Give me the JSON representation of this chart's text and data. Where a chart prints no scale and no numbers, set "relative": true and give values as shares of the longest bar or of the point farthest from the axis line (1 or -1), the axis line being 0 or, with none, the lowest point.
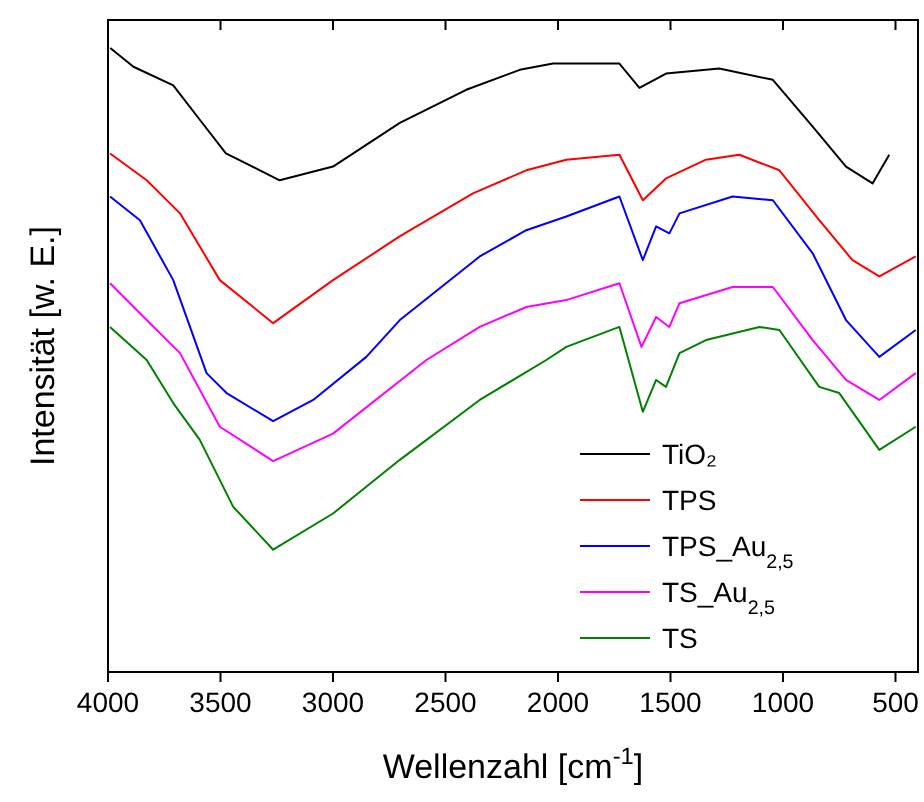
{
  "chart_data": {
    "type": "line",
    "relative": true,
    "xlabel": "Wellenzahl [cm$^{-1}$]",
    "ylabel": "Intensität [w. E.]",
    "xlim": [
      4000,
      400
    ],
    "xticks": [
      4000,
      3500,
      3000,
      2500,
      2000,
      1500,
      1000,
      500
    ],
    "tick_labels": "x",
    "legend": "bottom right",
    "grid": false,
    "series": [
      {
        "name": "TiO₂",
        "color": "#000000",
        "x": [
          3990,
          3887,
          3710,
          3592,
          3476,
          3237,
          3000,
          2703,
          2408,
          2170,
          2022,
          1727,
          1638,
          1520,
          1283,
          1045,
          868,
          720,
          602,
          528
        ],
        "values": [
          1.0,
          0.97,
          0.94,
          0.885,
          0.831,
          0.788,
          0.81,
          0.88,
          0.933,
          0.965,
          0.975,
          0.975,
          0.936,
          0.959,
          0.967,
          0.949,
          0.874,
          0.81,
          0.783,
          0.829
        ]
      },
      {
        "name": "TPS",
        "color": "#ff0000",
        "x": [
          3991,
          3828,
          3680,
          3503,
          3266,
          3000,
          2704,
          2378,
          2141,
          1963,
          1727,
          1623,
          1520,
          1342,
          1194,
          1016,
          839,
          691,
          572,
          410
        ],
        "values": [
          0.831,
          0.788,
          0.735,
          0.628,
          0.559,
          0.628,
          0.698,
          0.767,
          0.804,
          0.821,
          0.829,
          0.756,
          0.791,
          0.821,
          0.829,
          0.804,
          0.724,
          0.66,
          0.634,
          0.666
        ]
      },
      {
        "name": "TPS_Au$_{2,5}$",
        "color": "#0000ff",
        "x": [
          3991,
          3858,
          3710,
          3562,
          3473,
          3266,
          3088,
          2852,
          2703,
          2348,
          2141,
          1963,
          1727,
          1623,
          1564,
          1505,
          1460,
          1224,
          1045,
          868,
          720,
          572,
          410
        ],
        "values": [
          0.762,
          0.724,
          0.628,
          0.479,
          0.447,
          0.402,
          0.436,
          0.505,
          0.564,
          0.666,
          0.708,
          0.73,
          0.762,
          0.66,
          0.714,
          0.703,
          0.735,
          0.762,
          0.756,
          0.671,
          0.564,
          0.505,
          0.548
        ]
      },
      {
        "name": "TS_Au$_{2,5}$",
        "color": "#ff00ff",
        "x": [
          3991,
          3828,
          3680,
          3503,
          3266,
          3000,
          2585,
          2348,
          2141,
          1963,
          1727,
          1629,
          1564,
          1505,
          1460,
          1224,
          1045,
          868,
          720,
          572,
          410
        ],
        "values": [
          0.623,
          0.564,
          0.511,
          0.393,
          0.338,
          0.382,
          0.5,
          0.553,
          0.585,
          0.596,
          0.623,
          0.521,
          0.569,
          0.553,
          0.591,
          0.617,
          0.617,
          0.532,
          0.468,
          0.436,
          0.479
        ]
      },
      {
        "name": "TS",
        "color": "#008000",
        "x": [
          3991,
          3828,
          3710,
          3592,
          3444,
          3266,
          3000,
          2703,
          2348,
          2052,
          1963,
          1727,
          1623,
          1564,
          1520,
          1460,
          1342,
          1105,
          1016,
          839,
          750,
          572,
          410
        ],
        "values": [
          0.553,
          0.5,
          0.431,
          0.372,
          0.265,
          0.196,
          0.254,
          0.34,
          0.436,
          0.5,
          0.521,
          0.553,
          0.417,
          0.468,
          0.457,
          0.511,
          0.532,
          0.553,
          0.548,
          0.457,
          0.447,
          0.356,
          0.393
        ]
      }
    ]
  }
}
